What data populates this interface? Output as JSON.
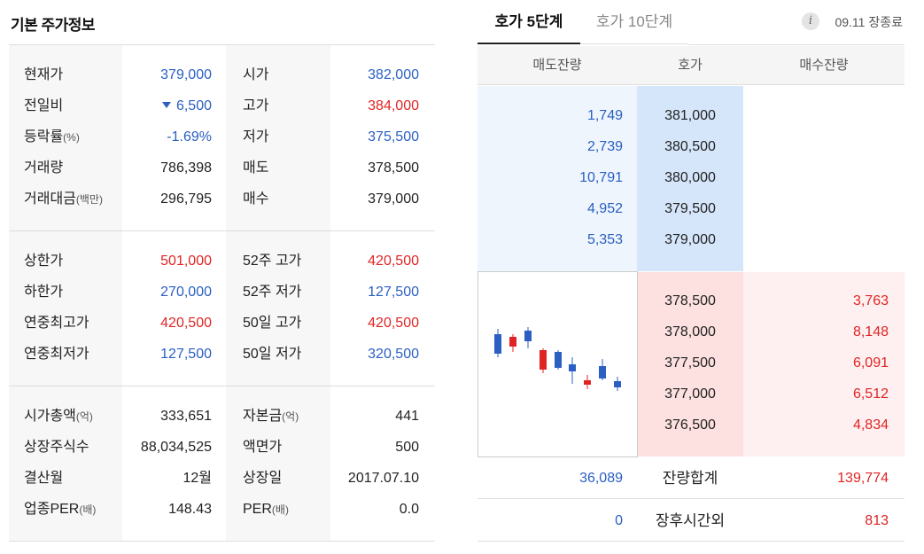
{
  "left": {
    "title": "기본 주가정보",
    "groups": [
      [
        {
          "l1": "현재가",
          "l1s": "",
          "v1": "379,000",
          "c1": "blue",
          "l2": "시가",
          "l2s": "",
          "v2": "382,000",
          "c2": "blue"
        },
        {
          "l1": "전일비",
          "l1s": "",
          "v1": "6,500",
          "c1": "blue",
          "arrow": "down",
          "l2": "고가",
          "l2s": "",
          "v2": "384,000",
          "c2": "red"
        },
        {
          "l1": "등락률",
          "l1s": "(%)",
          "v1": "-1.69%",
          "c1": "blue",
          "l2": "저가",
          "l2s": "",
          "v2": "375,500",
          "c2": "blue"
        },
        {
          "l1": "거래량",
          "l1s": "",
          "v1": "786,398",
          "c1": "dark",
          "l2": "매도",
          "l2s": "",
          "v2": "378,500",
          "c2": "dark"
        },
        {
          "l1": "거래대금",
          "l1s": "(백만)",
          "v1": "296,795",
          "c1": "dark",
          "l2": "매수",
          "l2s": "",
          "v2": "379,000",
          "c2": "dark"
        }
      ],
      [
        {
          "l1": "상한가",
          "l1s": "",
          "v1": "501,000",
          "c1": "red",
          "l2": "52주 고가",
          "l2s": "",
          "v2": "420,500",
          "c2": "red"
        },
        {
          "l1": "하한가",
          "l1s": "",
          "v1": "270,000",
          "c1": "blue",
          "l2": "52주 저가",
          "l2s": "",
          "v2": "127,500",
          "c2": "blue"
        },
        {
          "l1": "연중최고가",
          "l1s": "",
          "v1": "420,500",
          "c1": "red",
          "l2": "50일 고가",
          "l2s": "",
          "v2": "420,500",
          "c2": "red"
        },
        {
          "l1": "연중최저가",
          "l1s": "",
          "v1": "127,500",
          "c1": "blue",
          "l2": "50일 저가",
          "l2s": "",
          "v2": "320,500",
          "c2": "blue"
        }
      ],
      [
        {
          "l1": "시가총액",
          "l1s": "(억)",
          "v1": "333,651",
          "c1": "dark",
          "l2": "자본금",
          "l2s": "(억)",
          "v2": "441",
          "c2": "dark"
        },
        {
          "l1": "상장주식수",
          "l1s": "",
          "v1": "88,034,525",
          "c1": "dark",
          "l2": "액면가",
          "l2s": "",
          "v2": "500",
          "c2": "dark"
        },
        {
          "l1": "결산월",
          "l1s": "",
          "v1": "12월",
          "c1": "dark",
          "l2": "상장일",
          "l2s": "",
          "v2": "2017.07.10",
          "c2": "dark"
        },
        {
          "l1": "업종PER",
          "l1s": "(배)",
          "v1": "148.43",
          "c1": "dark",
          "l2": "PER",
          "l2s": "(배)",
          "v2": "0.0",
          "c2": "dark"
        }
      ]
    ]
  },
  "right": {
    "tabs": {
      "active": "호가 5단계",
      "inactive": "호가 10단계"
    },
    "info_icon": "i",
    "status": "09.11 장종료",
    "headers": {
      "ask": "매도잔량",
      "price": "호가",
      "bid": "매수잔량"
    },
    "asks": [
      {
        "qty": "1,749",
        "price": "381,000"
      },
      {
        "qty": "2,739",
        "price": "380,500"
      },
      {
        "qty": "10,791",
        "price": "380,000"
      },
      {
        "qty": "4,952",
        "price": "379,500"
      },
      {
        "qty": "5,353",
        "price": "379,000"
      }
    ],
    "bids": [
      {
        "price": "378,500",
        "qty": "3,763"
      },
      {
        "price": "378,000",
        "qty": "8,148"
      },
      {
        "price": "377,500",
        "qty": "6,091"
      },
      {
        "price": "377,000",
        "qty": "6,512"
      },
      {
        "price": "376,500",
        "qty": "4,834"
      }
    ],
    "summary": [
      {
        "ask": "36,089",
        "label": "잔량합계",
        "bid": "139,774"
      },
      {
        "ask": "0",
        "label": "장후시간외",
        "bid": "813"
      }
    ],
    "colors": {
      "up": "#e02424",
      "down": "#2b5fc2"
    }
  },
  "chart_data": {
    "type": "candlestick",
    "candles": [
      {
        "dir": "down"
      },
      {
        "dir": "up"
      },
      {
        "dir": "down"
      },
      {
        "dir": "up"
      },
      {
        "dir": "down"
      },
      {
        "dir": "down"
      },
      {
        "dir": "up"
      },
      {
        "dir": "down"
      },
      {
        "dir": "down"
      }
    ]
  }
}
